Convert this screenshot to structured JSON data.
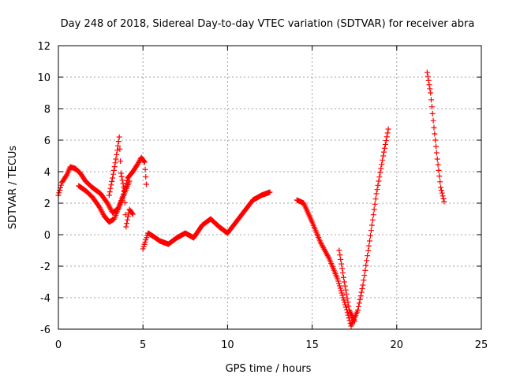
{
  "chart_data": {
    "type": "scatter",
    "title": "Day 248 of 2018, Sidereal Day-to-day VTEC variation (SDTVAR) for receiver abra",
    "xlabel": "GPS time / hours",
    "ylabel": "SDTVAR / TECUs",
    "xlim": [
      0,
      25
    ],
    "ylim": [
      -6,
      12
    ],
    "xticks": [
      0,
      5,
      10,
      15,
      20,
      25
    ],
    "yticks": [
      -6,
      -4,
      -2,
      0,
      2,
      4,
      6,
      8,
      10,
      12
    ],
    "xtick_labels": [
      "0",
      "5",
      "10",
      "15",
      "20",
      "25"
    ],
    "ytick_labels": [
      "-6",
      "-4",
      "-2",
      "0",
      "2",
      "4",
      "6",
      "8",
      "10",
      "12"
    ],
    "grid": true,
    "marker": "+",
    "color": "#ff0000",
    "series": [
      {
        "name": "seg1",
        "points": [
          [
            0.0,
            2.5
          ],
          [
            0.2,
            3.3
          ],
          [
            0.5,
            3.8
          ],
          [
            0.7,
            4.3
          ],
          [
            1.0,
            4.2
          ],
          [
            1.3,
            3.9
          ],
          [
            1.6,
            3.4
          ],
          [
            2.0,
            3.0
          ],
          [
            2.5,
            2.6
          ],
          [
            2.9,
            2.0
          ],
          [
            3.2,
            1.4
          ],
          [
            3.5,
            1.6
          ],
          [
            3.8,
            2.4
          ],
          [
            4.1,
            3.6
          ],
          [
            4.4,
            4.0
          ],
          [
            4.7,
            4.5
          ],
          [
            4.9,
            4.9
          ],
          [
            5.1,
            4.6
          ],
          [
            5.2,
            3.2
          ]
        ]
      },
      {
        "name": "seg2",
        "points": [
          [
            1.2,
            3.1
          ],
          [
            1.6,
            2.8
          ],
          [
            2.0,
            2.4
          ],
          [
            2.4,
            1.8
          ],
          [
            2.7,
            1.2
          ],
          [
            3.0,
            0.8
          ],
          [
            3.3,
            1.0
          ],
          [
            3.6,
            1.8
          ],
          [
            3.9,
            2.6
          ],
          [
            4.2,
            3.4
          ]
        ]
      },
      {
        "name": "seg3",
        "points": [
          [
            3.0,
            2.5
          ],
          [
            3.2,
            3.6
          ],
          [
            3.4,
            4.8
          ],
          [
            3.6,
            6.2
          ],
          [
            3.7,
            3.9
          ],
          [
            3.9,
            2.8
          ],
          [
            4.0,
            0.5
          ],
          [
            4.2,
            1.6
          ],
          [
            4.4,
            1.3
          ]
        ]
      },
      {
        "name": "seg4",
        "points": [
          [
            5.0,
            -0.9
          ],
          [
            5.3,
            0.1
          ],
          [
            5.6,
            -0.1
          ],
          [
            6.0,
            -0.4
          ],
          [
            6.5,
            -0.6
          ],
          [
            7.0,
            -0.2
          ],
          [
            7.5,
            0.1
          ],
          [
            8.0,
            -0.2
          ],
          [
            8.5,
            0.6
          ],
          [
            9.0,
            1.0
          ],
          [
            9.5,
            0.5
          ],
          [
            10.0,
            0.1
          ],
          [
            10.5,
            0.8
          ],
          [
            11.0,
            1.5
          ],
          [
            11.5,
            2.2
          ],
          [
            12.0,
            2.5
          ],
          [
            12.5,
            2.7
          ]
        ]
      },
      {
        "name": "seg5",
        "points": [
          [
            14.1,
            2.2
          ],
          [
            14.5,
            2.0
          ],
          [
            15.0,
            0.8
          ],
          [
            15.5,
            -0.5
          ],
          [
            16.0,
            -1.5
          ],
          [
            16.5,
            -2.8
          ],
          [
            17.0,
            -4.6
          ],
          [
            17.3,
            -5.8
          ],
          [
            17.7,
            -4.8
          ],
          [
            18.0,
            -3.2
          ],
          [
            18.4,
            -0.4
          ],
          [
            18.8,
            2.6
          ],
          [
            19.2,
            5.0
          ],
          [
            19.5,
            6.7
          ]
        ]
      },
      {
        "name": "seg6",
        "points": [
          [
            16.6,
            -1.0
          ],
          [
            16.9,
            -3.0
          ],
          [
            17.2,
            -4.8
          ],
          [
            17.5,
            -5.5
          ]
        ]
      },
      {
        "name": "seg7",
        "points": [
          [
            21.8,
            10.3
          ],
          [
            22.0,
            9.0
          ],
          [
            22.2,
            6.8
          ],
          [
            22.4,
            4.8
          ],
          [
            22.6,
            3.0
          ],
          [
            22.8,
            2.1
          ]
        ]
      }
    ]
  }
}
